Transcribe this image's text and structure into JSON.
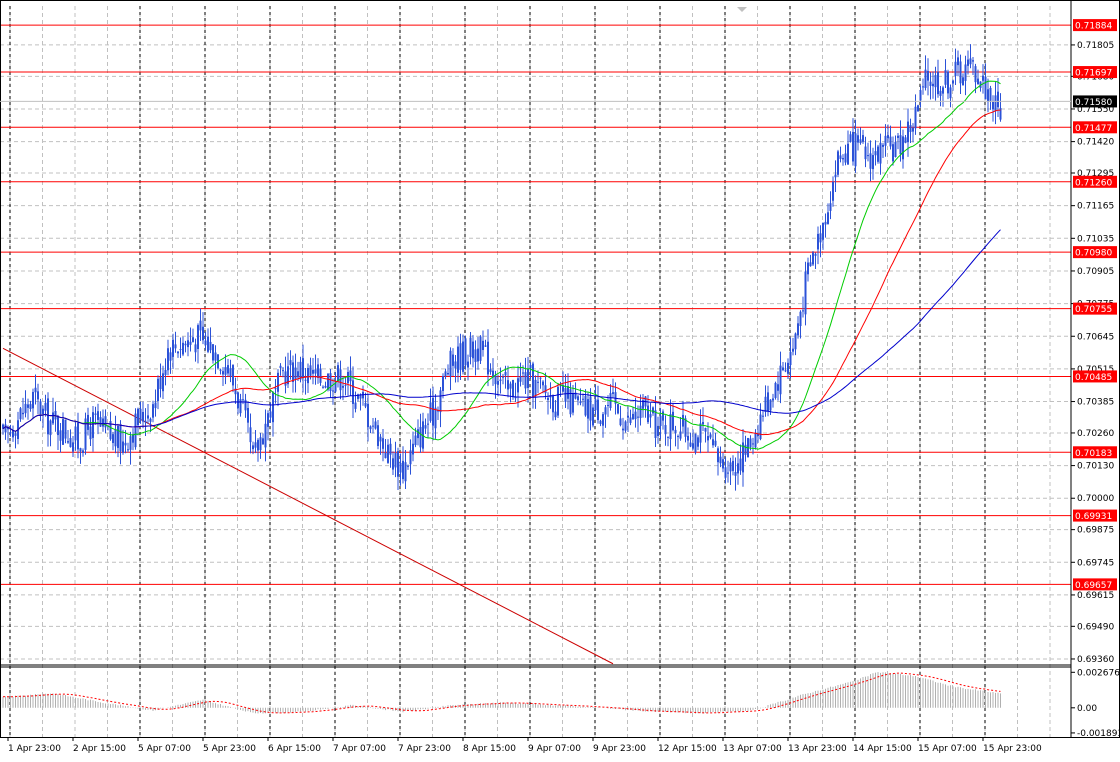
{
  "chart_data": [
    {
      "type": "candlestick",
      "ylim": [
        0.6934,
        0.7196
      ],
      "y_ticks": [
        "0.71805",
        "0.71680",
        "0.71550",
        "0.71420",
        "0.71295",
        "0.71165",
        "0.71035",
        "0.70905",
        "0.70775",
        "0.70645",
        "0.70515",
        "0.70385",
        "0.70260",
        "0.70130",
        "0.70000",
        "0.69875",
        "0.69745",
        "0.69615",
        "0.69490",
        "0.69360"
      ],
      "x_labels": [
        "1 Apr 23:00",
        "2 Apr 15:00",
        "5 Apr 07:00",
        "5 Apr 23:00",
        "6 Apr 15:00",
        "7 Apr 07:00",
        "7 Apr 23:00",
        "8 Apr 15:00",
        "9 Apr 07:00",
        "9 Apr 23:00",
        "12 Apr 15:00",
        "13 Apr 07:00",
        "13 Apr 23:00",
        "14 Apr 15:00",
        "15 Apr 07:00",
        "15 Apr 23:00"
      ],
      "current_price": "0.71580",
      "levels": [
        {
          "label": "0.71884",
          "value": 0.71884
        },
        {
          "label": "0.71697",
          "value": 0.71697
        },
        {
          "label": "0.71477",
          "value": 0.71477
        },
        {
          "label": "0.71260",
          "value": 0.7126
        },
        {
          "label": "0.70980",
          "value": 0.7098
        },
        {
          "label": "0.70755",
          "value": 0.70755
        },
        {
          "label": "0.70485",
          "value": 0.70485
        },
        {
          "label": "0.70183",
          "value": 0.70183
        },
        {
          "label": "0.69931",
          "value": 0.69931
        },
        {
          "label": "0.69657",
          "value": 0.69657
        }
      ],
      "trend_line": [
        {
          "x": 0,
          "y": 0.70597
        },
        {
          "x": 244,
          "y": 0.69341
        }
      ],
      "price_anchors": [
        [
          0,
          0.7023
        ],
        [
          6,
          0.7032
        ],
        [
          12,
          0.704
        ],
        [
          18,
          0.7031
        ],
        [
          24,
          0.7028
        ],
        [
          30,
          0.7022
        ],
        [
          36,
          0.703
        ],
        [
          42,
          0.7025
        ],
        [
          48,
          0.7022
        ],
        [
          54,
          0.7031
        ],
        [
          60,
          0.7037
        ],
        [
          66,
          0.706
        ],
        [
          72,
          0.7062
        ],
        [
          78,
          0.7064
        ],
        [
          84,
          0.706
        ],
        [
          90,
          0.7052
        ],
        [
          96,
          0.7034
        ],
        [
          100,
          0.7015
        ],
        [
          106,
          0.7033
        ],
        [
          112,
          0.705
        ],
        [
          118,
          0.7052
        ],
        [
          124,
          0.7048
        ],
        [
          130,
          0.7048
        ],
        [
          136,
          0.7049
        ],
        [
          142,
          0.704
        ],
        [
          148,
          0.703
        ],
        [
          154,
          0.7018
        ],
        [
          160,
          0.7012
        ],
        [
          166,
          0.7024
        ],
        [
          172,
          0.7034
        ],
        [
          178,
          0.7052
        ],
        [
          184,
          0.7058
        ],
        [
          190,
          0.706
        ],
        [
          196,
          0.7052
        ],
        [
          202,
          0.7042
        ],
        [
          208,
          0.7048
        ],
        [
          214,
          0.7044
        ],
        [
          220,
          0.704
        ],
        [
          226,
          0.7039
        ],
        [
          232,
          0.7035
        ],
        [
          238,
          0.7036
        ],
        [
          244,
          0.7037
        ],
        [
          250,
          0.703
        ],
        [
          256,
          0.7035
        ],
        [
          262,
          0.7028
        ],
        [
          268,
          0.703
        ],
        [
          274,
          0.7026
        ],
        [
          280,
          0.7025
        ],
        [
          286,
          0.7015
        ],
        [
          292,
          0.7013
        ],
        [
          298,
          0.702
        ],
        [
          304,
          0.7035
        ],
        [
          310,
          0.7048
        ],
        [
          316,
          0.706
        ],
        [
          322,
          0.709
        ],
        [
          328,
          0.711
        ],
        [
          334,
          0.7135
        ],
        [
          340,
          0.714
        ],
        [
          346,
          0.7136
        ],
        [
          352,
          0.7138
        ],
        [
          358,
          0.714
        ],
        [
          364,
          0.715
        ],
        [
          370,
          0.7168
        ],
        [
          376,
          0.7165
        ],
        [
          382,
          0.717
        ],
        [
          388,
          0.7172
        ],
        [
          394,
          0.7162
        ],
        [
          398,
          0.7155
        ]
      ],
      "moving_averages": [
        {
          "color": "#00cc00",
          "period": 10
        },
        {
          "color": "#ff0000",
          "period": 20
        },
        {
          "color": "#0000cc",
          "period": 40
        }
      ],
      "colors": {
        "bullish": "#2b52d8",
        "bearish": "#2b52d8",
        "level": "#ff0000",
        "trend": "#cc0000"
      }
    },
    {
      "type": "histogram",
      "ylim": [
        -0.0022,
        0.003
      ],
      "y_ticks": [
        "0.002676",
        "0.00",
        "-0.001893"
      ],
      "anchors": [
        [
          0,
          0.0008
        ],
        [
          20,
          0.0011
        ],
        [
          40,
          0.0004
        ],
        [
          60,
          -0.0002
        ],
        [
          80,
          0.0006
        ],
        [
          100,
          -0.0004
        ],
        [
          120,
          -0.0003
        ],
        [
          140,
          0.0002
        ],
        [
          160,
          -0.0003
        ],
        [
          180,
          0.0002
        ],
        [
          200,
          0.0004
        ],
        [
          220,
          0.0002
        ],
        [
          240,
          0.0
        ],
        [
          260,
          -0.0003
        ],
        [
          280,
          -0.0004
        ],
        [
          300,
          -0.0002
        ],
        [
          320,
          0.001
        ],
        [
          340,
          0.002
        ],
        [
          350,
          0.0027
        ],
        [
          365,
          0.0024
        ],
        [
          380,
          0.0016
        ],
        [
          398,
          0.0011
        ]
      ],
      "bar_color": "#b0b0b0",
      "signal_color": "#ff0000"
    }
  ]
}
